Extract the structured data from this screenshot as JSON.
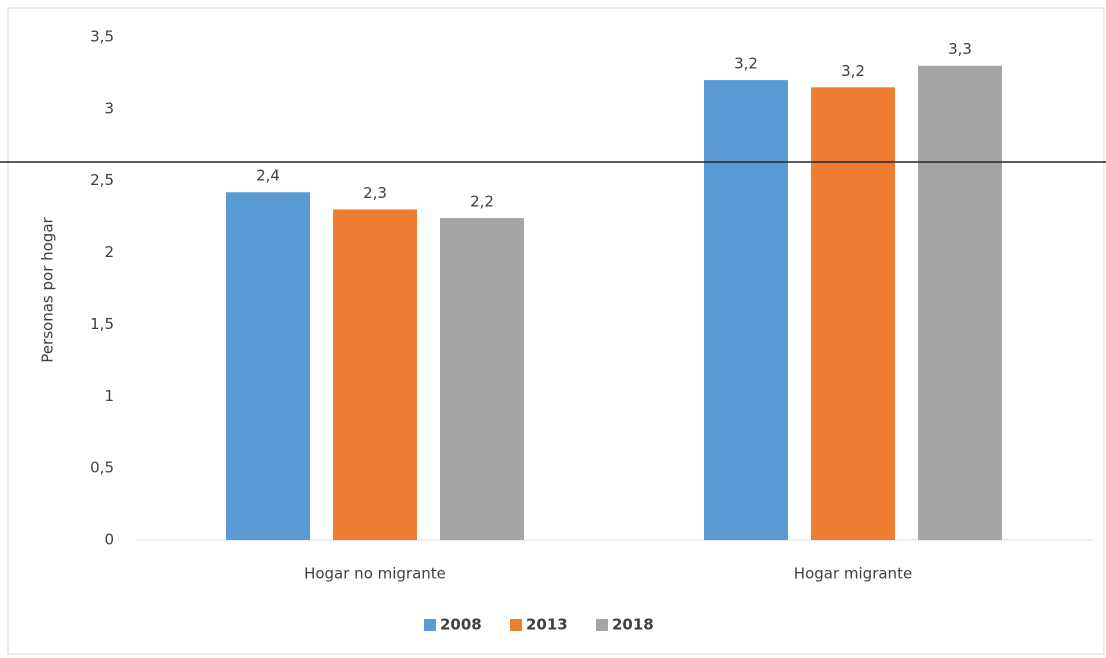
{
  "chart_data": {
    "type": "bar",
    "y_label": "Personas por hogar",
    "categories": [
      "Hogar no migrante",
      "Hogar migrante"
    ],
    "series": [
      {
        "name": "2008",
        "color": "#5b9bd5",
        "values": [
          2.42,
          3.2
        ],
        "value_labels": [
          "2,4",
          "3,2"
        ]
      },
      {
        "name": "2013",
        "color": "#ed7d31",
        "values": [
          2.3,
          3.15
        ],
        "value_labels": [
          "2,3",
          "3,2"
        ]
      },
      {
        "name": "2018",
        "color": "#a5a5a5",
        "values": [
          2.24,
          3.3
        ],
        "value_labels": [
          "2,2",
          "3,3"
        ]
      }
    ],
    "ylim": [
      0,
      3.5
    ],
    "yticks": [
      0,
      {
        "value": 0.5,
        "label": "0,5"
      },
      1,
      {
        "value": 1.5,
        "label": "1,5"
      },
      2,
      {
        "value": 2.5,
        "label": "2,5"
      },
      3,
      {
        "value": 3.5,
        "label": "3,5"
      }
    ],
    "reference_line": 2.63,
    "legend": "bottom"
  }
}
